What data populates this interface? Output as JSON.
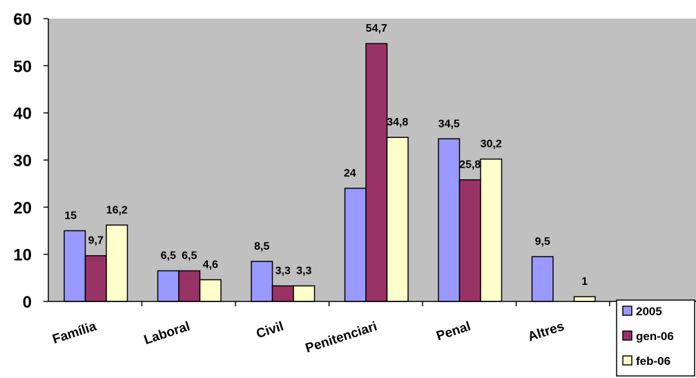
{
  "chart_data": {
    "type": "bar",
    "categories": [
      "Família",
      "Laboral",
      "Civil",
      "Penitenciari",
      "Penal",
      "Altres"
    ],
    "series": [
      {
        "name": "2005",
        "values": [
          15,
          6.5,
          8.5,
          24,
          34.5,
          9.5
        ],
        "labels": [
          "15",
          "6,5",
          "8,5",
          "24",
          "34,5",
          "9,5"
        ]
      },
      {
        "name": "gen-06",
        "values": [
          9.7,
          6.5,
          3.3,
          54.7,
          25.8,
          null
        ],
        "labels": [
          "9,7",
          "6,5",
          "3,3",
          "54,7",
          "25,8",
          ""
        ]
      },
      {
        "name": "feb-06",
        "values": [
          16.2,
          4.6,
          3.3,
          34.8,
          30.2,
          1
        ],
        "labels": [
          "16,2",
          "4,6",
          "3,3",
          "34,8",
          "30,2",
          "1"
        ]
      }
    ],
    "ylim": [
      0,
      60
    ],
    "yticks": [
      0,
      10,
      20,
      30,
      40,
      50,
      60
    ],
    "grid": false,
    "legend": "bottom-right",
    "colors": {
      "series": [
        "#9999FF",
        "#993366",
        "#FFFFCC"
      ],
      "plot_background": "#C0C0C0",
      "outline": "#000000"
    }
  }
}
